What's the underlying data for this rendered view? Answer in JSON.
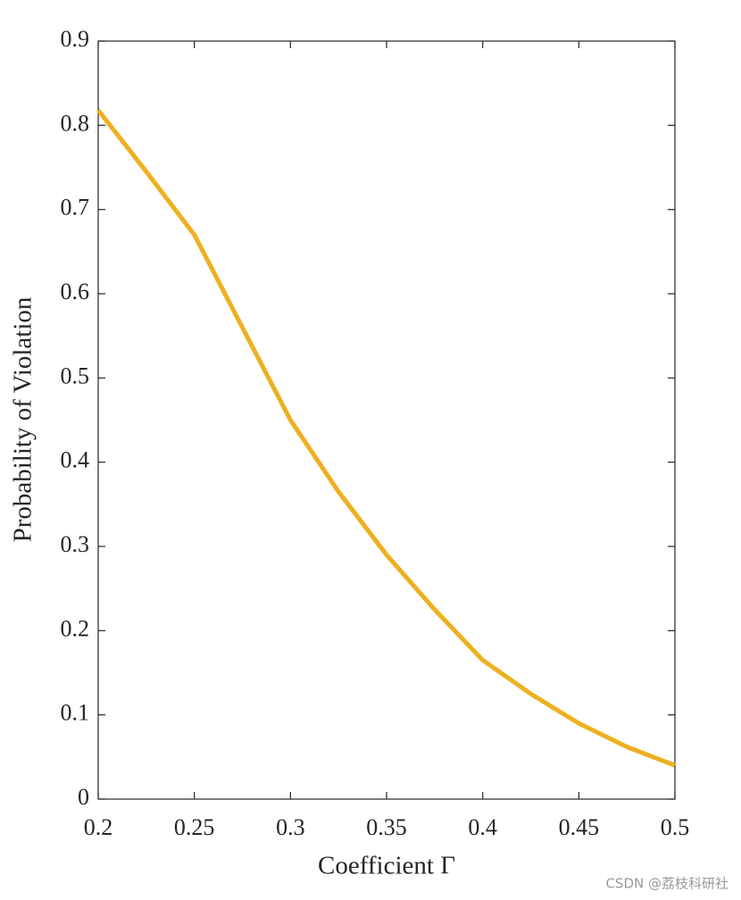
{
  "chart_data": {
    "type": "line",
    "xlabel": "Coefficient Γ",
    "ylabel": "Probability of Violation",
    "x": [
      0.2,
      0.225,
      0.25,
      0.275,
      0.3,
      0.325,
      0.35,
      0.375,
      0.4,
      0.425,
      0.45,
      0.475,
      0.5
    ],
    "series": [
      {
        "color": "#edb120",
        "values": [
          0.818,
          0.745,
          0.67,
          0.56,
          0.45,
          0.365,
          0.29,
          0.225,
          0.165,
          0.125,
          0.09,
          0.062,
          0.04
        ]
      }
    ],
    "xlim": [
      0.2,
      0.5
    ],
    "xticks": [
      0.2,
      0.25,
      0.3,
      0.35,
      0.4,
      0.45,
      0.5
    ],
    "ylim": [
      0,
      0.9
    ],
    "yticks": [
      0,
      0.1,
      0.2,
      0.3,
      0.4,
      0.5,
      0.6,
      0.7,
      0.8,
      0.9
    ],
    "grid": false
  },
  "watermark": "CSDN @荔枝科研社"
}
